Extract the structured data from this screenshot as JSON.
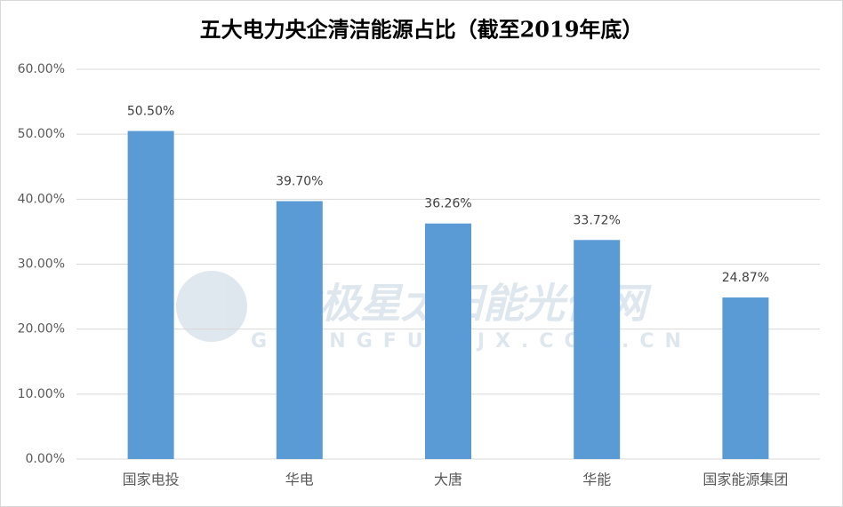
{
  "chart_data": {
    "type": "bar",
    "title": "五大电力央企清洁能源占比（截至2019年底）",
    "categories": [
      "国家电投",
      "华电",
      "大唐",
      "华能",
      "国家能源集团"
    ],
    "values": [
      50.5,
      39.7,
      36.26,
      33.72,
      24.87
    ],
    "value_labels": [
      "50.50%",
      "39.70%",
      "36.26%",
      "33.72%",
      "24.87%"
    ],
    "color": "#5b9bd5",
    "ylim": [
      0,
      60
    ],
    "yticks": [
      {
        "value": 0,
        "label": "0.00%"
      },
      {
        "value": 10,
        "label": "10.00%"
      },
      {
        "value": 20,
        "label": "20.00%"
      },
      {
        "value": 30,
        "label": "30.00%"
      },
      {
        "value": 40,
        "label": "40.00%"
      },
      {
        "value": 50,
        "label": "50.00%"
      },
      {
        "value": 60,
        "label": "60.00%"
      }
    ],
    "grid": true,
    "watermark": {
      "name": "北极星太阳能光伏网",
      "url": "GUANGFU.BJX.COM.CN"
    }
  }
}
